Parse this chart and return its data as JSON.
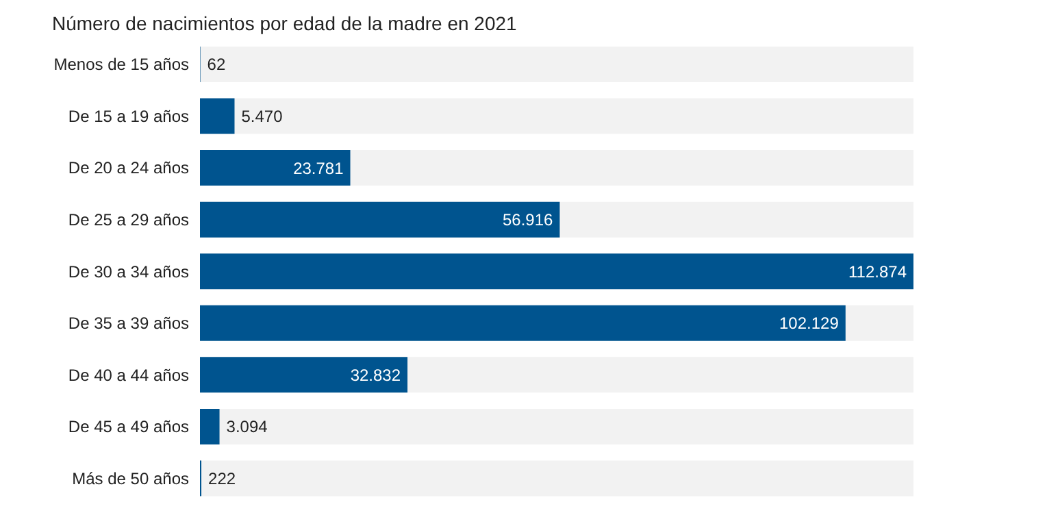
{
  "chart_data": {
    "type": "bar",
    "orientation": "horizontal",
    "title": "Número de nacimientos por edad de la madre en 2021",
    "categories": [
      "Menos de 15 años",
      "De 15 a 19 años",
      "De 20 a 24 años",
      "De 25 a 29 años",
      "De 30 a 34 años",
      "De 35 a 39 años",
      "De 40 a 44 años",
      "De 45 a 49 años",
      "Más de 50 años"
    ],
    "values": [
      62,
      5470,
      23781,
      56916,
      112874,
      102129,
      32832,
      3094,
      222
    ],
    "value_labels": [
      "62",
      "5.470",
      "23.781",
      "56.916",
      "112.874",
      "102.129",
      "32.832",
      "3.094",
      "222"
    ],
    "color": "#00548f",
    "xlim": [
      0,
      112874
    ]
  }
}
